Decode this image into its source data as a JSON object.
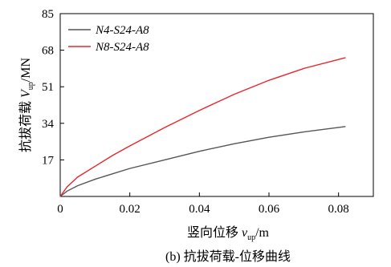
{
  "chart_data": {
    "type": "line",
    "xlabel": "竖向位移 v_up/m",
    "ylabel": "抗拔荷载 V_up/MN",
    "caption": "(b) 抗拔荷载-位移曲线",
    "xlim": [
      0,
      0.09
    ],
    "ylim": [
      0,
      85
    ],
    "x_ticks": [
      "0",
      "0.02",
      "0.04",
      "0.06",
      "0.08"
    ],
    "x_tick_values": [
      0,
      0.02,
      0.04,
      0.06,
      0.08
    ],
    "y_ticks": [
      "17",
      "34",
      "51",
      "68",
      "85"
    ],
    "y_tick_values": [
      17,
      34,
      51,
      68,
      85
    ],
    "grid": false,
    "legend_position": "top-left",
    "series": [
      {
        "name": "N4-S24-A8",
        "color": "#555555",
        "x": [
          0,
          0.002,
          0.005,
          0.01,
          0.015,
          0.02,
          0.03,
          0.04,
          0.05,
          0.06,
          0.07,
          0.082
        ],
        "y": [
          0,
          2.5,
          5,
          8,
          10.5,
          13,
          17,
          21,
          24.5,
          27.5,
          30,
          32.5
        ]
      },
      {
        "name": "N8-S24-A8",
        "color": "#e8262d",
        "x": [
          0,
          0.002,
          0.005,
          0.01,
          0.015,
          0.02,
          0.03,
          0.04,
          0.05,
          0.06,
          0.07,
          0.082
        ],
        "y": [
          0,
          4.5,
          9,
          14,
          19,
          23.5,
          32,
          40,
          47.5,
          54,
          59.5,
          64.5
        ]
      }
    ]
  }
}
